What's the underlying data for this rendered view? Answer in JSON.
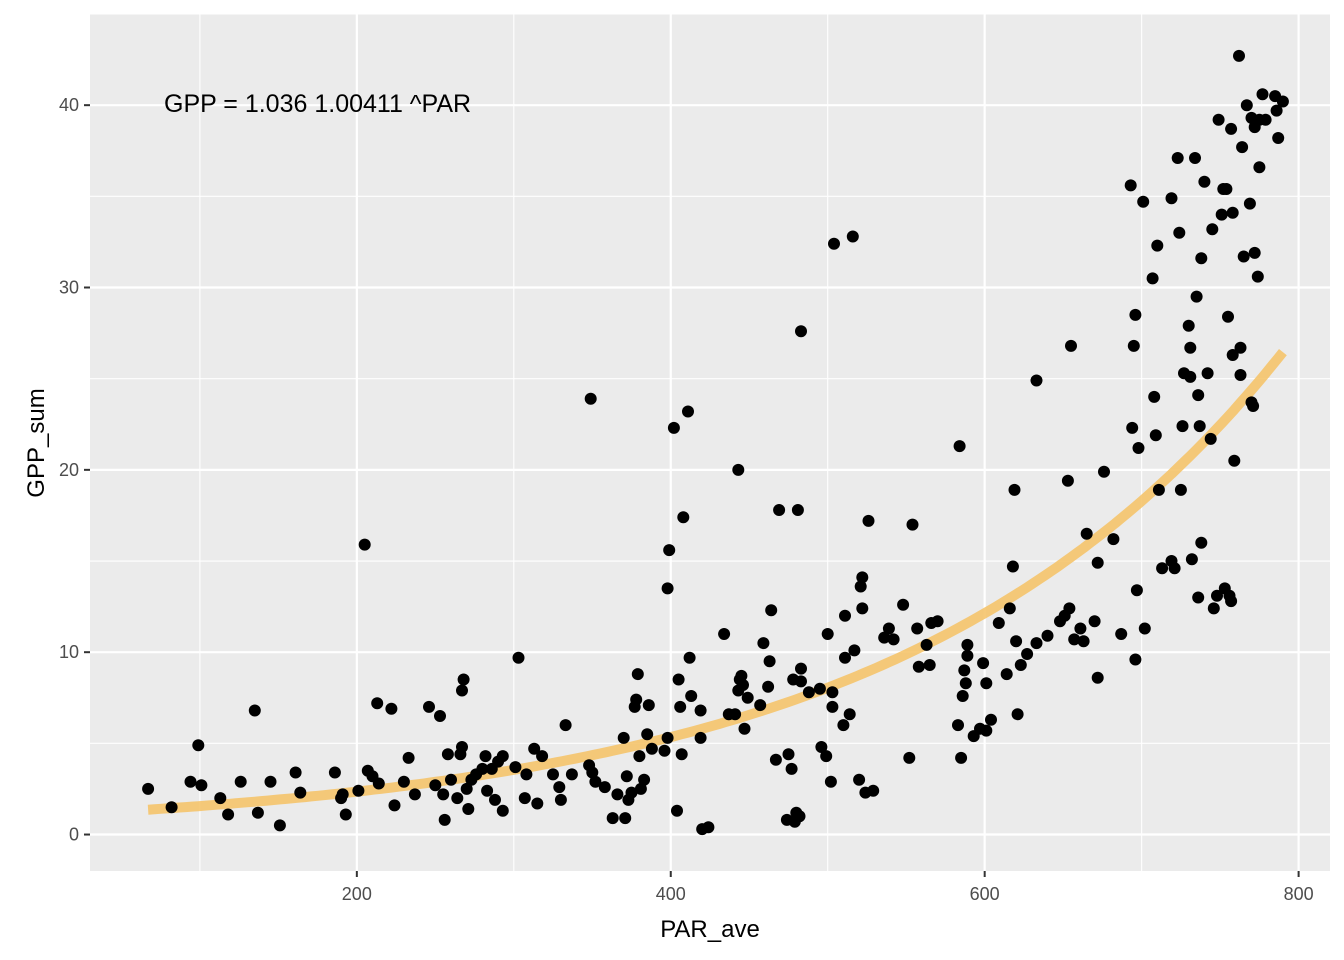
{
  "chart_data": {
    "type": "scatter",
    "title": "",
    "xlabel": "PAR_ave",
    "ylabel": "GPP_sum",
    "xlim": [
      30,
      820
    ],
    "ylim": [
      -2,
      45
    ],
    "x_ticks": [
      200,
      400,
      600,
      800
    ],
    "y_ticks": [
      0,
      10,
      20,
      30,
      40
    ],
    "grid": true,
    "annotation": "GPP =  1.036 1.00411 ^PAR",
    "colors": {
      "panel_background": "#ebebeb",
      "grid": "#ffffff",
      "points": "#000000",
      "fit_line": "#f5c46b"
    },
    "fit": {
      "type": "exponential",
      "a": 1.036,
      "b": 1.00411,
      "x_range": [
        67,
        790
      ]
    },
    "points": [
      [
        67,
        2.5
      ],
      [
        82,
        1.5
      ],
      [
        94,
        2.9
      ],
      [
        99,
        4.9
      ],
      [
        101,
        2.7
      ],
      [
        113,
        2.0
      ],
      [
        118,
        1.1
      ],
      [
        126,
        2.9
      ],
      [
        135,
        6.8
      ],
      [
        137,
        1.2
      ],
      [
        145,
        2.9
      ],
      [
        151,
        0.5
      ],
      [
        161,
        3.4
      ],
      [
        164,
        2.3
      ],
      [
        186,
        3.4
      ],
      [
        190,
        2.0
      ],
      [
        191,
        2.2
      ],
      [
        193,
        1.1
      ],
      [
        201,
        2.4
      ],
      [
        205,
        15.9
      ],
      [
        207,
        3.5
      ],
      [
        210,
        3.2
      ],
      [
        213,
        7.2
      ],
      [
        214,
        2.8
      ],
      [
        222,
        6.9
      ],
      [
        224,
        1.6
      ],
      [
        230,
        2.9
      ],
      [
        233,
        4.2
      ],
      [
        237,
        2.2
      ],
      [
        246,
        7.0
      ],
      [
        250,
        2.7
      ],
      [
        253,
        6.5
      ],
      [
        255,
        2.2
      ],
      [
        256,
        0.8
      ],
      [
        258,
        4.4
      ],
      [
        260,
        3.0
      ],
      [
        264,
        2.0
      ],
      [
        266,
        4.4
      ],
      [
        267,
        4.8
      ],
      [
        267,
        7.9
      ],
      [
        268,
        8.5
      ],
      [
        270,
        2.5
      ],
      [
        271,
        1.4
      ],
      [
        273,
        3.0
      ],
      [
        276,
        3.3
      ],
      [
        280,
        3.6
      ],
      [
        282,
        4.3
      ],
      [
        283,
        2.4
      ],
      [
        286,
        3.6
      ],
      [
        288,
        1.9
      ],
      [
        290,
        4.0
      ],
      [
        293,
        4.3
      ],
      [
        293,
        1.3
      ],
      [
        301,
        3.7
      ],
      [
        303,
        9.7
      ],
      [
        307,
        2.0
      ],
      [
        308,
        3.3
      ],
      [
        313,
        4.7
      ],
      [
        315,
        1.7
      ],
      [
        318,
        4.3
      ],
      [
        325,
        3.3
      ],
      [
        329,
        2.6
      ],
      [
        330,
        1.9
      ],
      [
        333,
        6.0
      ],
      [
        337,
        3.3
      ],
      [
        348,
        3.8
      ],
      [
        349,
        23.9
      ],
      [
        350,
        3.4
      ],
      [
        352,
        2.9
      ],
      [
        358,
        2.6
      ],
      [
        363,
        0.9
      ],
      [
        366,
        2.2
      ],
      [
        370,
        5.3
      ],
      [
        371,
        0.9
      ],
      [
        372,
        3.2
      ],
      [
        373,
        1.9
      ],
      [
        375,
        2.3
      ],
      [
        377,
        7.0
      ],
      [
        378,
        7.4
      ],
      [
        379,
        8.8
      ],
      [
        380,
        4.3
      ],
      [
        381,
        2.5
      ],
      [
        383,
        3.0
      ],
      [
        385,
        5.5
      ],
      [
        386,
        7.1
      ],
      [
        388,
        4.7
      ],
      [
        396,
        4.6
      ],
      [
        398,
        5.3
      ],
      [
        398,
        13.5
      ],
      [
        399,
        15.6
      ],
      [
        402,
        22.3
      ],
      [
        404,
        1.3
      ],
      [
        405,
        8.5
      ],
      [
        406,
        7.0
      ],
      [
        407,
        4.4
      ],
      [
        408,
        17.4
      ],
      [
        411,
        23.2
      ],
      [
        412,
        9.7
      ],
      [
        413,
        7.6
      ],
      [
        419,
        5.3
      ],
      [
        419,
        6.8
      ],
      [
        420,
        0.3
      ],
      [
        424,
        0.4
      ],
      [
        434,
        11.0
      ],
      [
        437,
        6.6
      ],
      [
        441,
        6.6
      ],
      [
        443,
        20.0
      ],
      [
        443,
        7.9
      ],
      [
        444,
        8.5
      ],
      [
        445,
        8.7
      ],
      [
        446,
        8.2
      ],
      [
        447,
        5.8
      ],
      [
        449,
        7.5
      ],
      [
        457,
        7.1
      ],
      [
        459,
        10.5
      ],
      [
        462,
        8.1
      ],
      [
        463,
        9.5
      ],
      [
        464,
        12.3
      ],
      [
        467,
        4.1
      ],
      [
        469,
        17.8
      ],
      [
        474,
        0.8
      ],
      [
        475,
        4.4
      ],
      [
        477,
        3.6
      ],
      [
        478,
        8.5
      ],
      [
        479,
        0.7
      ],
      [
        480,
        1.2
      ],
      [
        481,
        17.8
      ],
      [
        482,
        1.0
      ],
      [
        483,
        9.1
      ],
      [
        483,
        27.6
      ],
      [
        483,
        8.4
      ],
      [
        488,
        7.8
      ],
      [
        495,
        8.0
      ],
      [
        496,
        4.8
      ],
      [
        499,
        4.3
      ],
      [
        500,
        11.0
      ],
      [
        502,
        2.9
      ],
      [
        503,
        7.8
      ],
      [
        503,
        7.0
      ],
      [
        504,
        32.4
      ],
      [
        510,
        6.0
      ],
      [
        511,
        9.7
      ],
      [
        511,
        12.0
      ],
      [
        514,
        6.6
      ],
      [
        516,
        32.8
      ],
      [
        517,
        10.1
      ],
      [
        520,
        3.0
      ],
      [
        521,
        13.6
      ],
      [
        522,
        14.1
      ],
      [
        522,
        12.4
      ],
      [
        524,
        2.3
      ],
      [
        526,
        17.2
      ],
      [
        529,
        2.4
      ],
      [
        536,
        10.8
      ],
      [
        539,
        11.3
      ],
      [
        542,
        10.7
      ],
      [
        548,
        12.6
      ],
      [
        552,
        4.2
      ],
      [
        554,
        17.0
      ],
      [
        557,
        11.3
      ],
      [
        558,
        9.2
      ],
      [
        563,
        10.4
      ],
      [
        565,
        9.3
      ],
      [
        566,
        11.6
      ],
      [
        570,
        11.7
      ],
      [
        583,
        6.0
      ],
      [
        584,
        21.3
      ],
      [
        585,
        4.2
      ],
      [
        586,
        7.6
      ],
      [
        587,
        9.0
      ],
      [
        588,
        8.3
      ],
      [
        589,
        9.8
      ],
      [
        589,
        10.4
      ],
      [
        593,
        5.4
      ],
      [
        597,
        5.8
      ],
      [
        599,
        9.4
      ],
      [
        601,
        5.7
      ],
      [
        601,
        8.3
      ],
      [
        604,
        6.3
      ],
      [
        609,
        11.6
      ],
      [
        614,
        8.8
      ],
      [
        616,
        12.4
      ],
      [
        618,
        14.7
      ],
      [
        619,
        18.9
      ],
      [
        620,
        10.6
      ],
      [
        621,
        6.6
      ],
      [
        623,
        9.3
      ],
      [
        627,
        9.9
      ],
      [
        633,
        24.9
      ],
      [
        633,
        10.5
      ],
      [
        640,
        10.9
      ],
      [
        648,
        11.7
      ],
      [
        651,
        12.0
      ],
      [
        653,
        19.4
      ],
      [
        654,
        12.4
      ],
      [
        655,
        26.8
      ],
      [
        657,
        10.7
      ],
      [
        661,
        11.3
      ],
      [
        663,
        10.6
      ],
      [
        665,
        16.5
      ],
      [
        670,
        11.7
      ],
      [
        672,
        14.9
      ],
      [
        672,
        8.6
      ],
      [
        676,
        19.9
      ],
      [
        682,
        16.2
      ],
      [
        687,
        11.0
      ],
      [
        693,
        35.6
      ],
      [
        694,
        22.3
      ],
      [
        695,
        26.8
      ],
      [
        696,
        28.5
      ],
      [
        696,
        9.6
      ],
      [
        697,
        13.4
      ],
      [
        698,
        21.2
      ],
      [
        701,
        34.7
      ],
      [
        702,
        11.3
      ],
      [
        707,
        30.5
      ],
      [
        708,
        24.0
      ],
      [
        709,
        21.9
      ],
      [
        710,
        32.3
      ],
      [
        711,
        18.9
      ],
      [
        713,
        14.6
      ],
      [
        719,
        34.9
      ],
      [
        719,
        15.0
      ],
      [
        721,
        14.6
      ],
      [
        723,
        37.1
      ],
      [
        724,
        33.0
      ],
      [
        725,
        18.9
      ],
      [
        726,
        22.4
      ],
      [
        727,
        25.3
      ],
      [
        730,
        27.9
      ],
      [
        731,
        25.1
      ],
      [
        731,
        26.7
      ],
      [
        732,
        15.1
      ],
      [
        734,
        37.1
      ],
      [
        735,
        29.5
      ],
      [
        736,
        13.0
      ],
      [
        736,
        24.1
      ],
      [
        737,
        22.4
      ],
      [
        738,
        31.6
      ],
      [
        738,
        16.0
      ],
      [
        740,
        35.8
      ],
      [
        742,
        25.3
      ],
      [
        744,
        21.7
      ],
      [
        745,
        33.2
      ],
      [
        746,
        12.4
      ],
      [
        748,
        13.1
      ],
      [
        749,
        39.2
      ],
      [
        751,
        34.0
      ],
      [
        752,
        35.4
      ],
      [
        753,
        13.5
      ],
      [
        754,
        35.4
      ],
      [
        755,
        28.4
      ],
      [
        756,
        13.1
      ],
      [
        757,
        12.8
      ],
      [
        757,
        38.7
      ],
      [
        758,
        34.1
      ],
      [
        758,
        26.3
      ],
      [
        759,
        20.5
      ],
      [
        762,
        42.7
      ],
      [
        763,
        26.7
      ],
      [
        763,
        25.2
      ],
      [
        764,
        37.7
      ],
      [
        765,
        31.7
      ],
      [
        767,
        40.0
      ],
      [
        769,
        34.6
      ],
      [
        770,
        39.3
      ],
      [
        770,
        23.7
      ],
      [
        771,
        23.5
      ],
      [
        772,
        31.9
      ],
      [
        772,
        38.8
      ],
      [
        774,
        30.6
      ],
      [
        775,
        39.2
      ],
      [
        775,
        36.6
      ],
      [
        777,
        40.6
      ],
      [
        779,
        39.2
      ],
      [
        785,
        40.5
      ],
      [
        786,
        39.7
      ],
      [
        787,
        38.2
      ],
      [
        790,
        40.2
      ]
    ]
  }
}
